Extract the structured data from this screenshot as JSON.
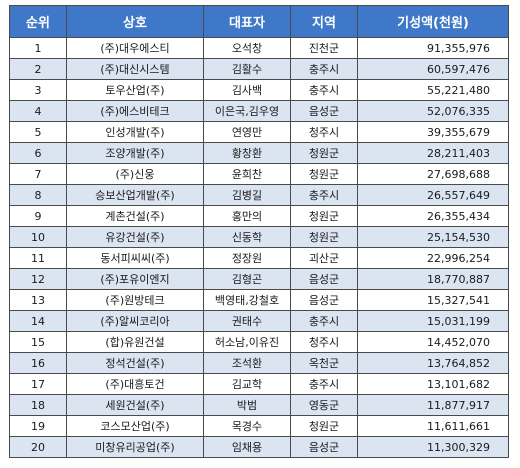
{
  "table": {
    "headers": {
      "rank": "순위",
      "company": "상호",
      "ceo": "대표자",
      "region": "지역",
      "amount": "기성액(천원)"
    },
    "colors": {
      "header_bg": "#3f78c8",
      "header_text": "#ffffff",
      "alt_row_bg": "#dbe5f1",
      "row_bg": "#ffffff"
    },
    "rows": [
      {
        "rank": "1",
        "company": "(주)대우에스티",
        "ceo": "오석창",
        "region": "진천군",
        "amount": "91,355,976"
      },
      {
        "rank": "2",
        "company": "(주)대신시스템",
        "ceo": "김활수",
        "region": "충주시",
        "amount": "60,597,476"
      },
      {
        "rank": "3",
        "company": "토우산업(주)",
        "ceo": "김사백",
        "region": "충주시",
        "amount": "55,221,480"
      },
      {
        "rank": "4",
        "company": "(주)에스비테크",
        "ceo": "이은국,김우영",
        "region": "음성군",
        "amount": "52,076,335"
      },
      {
        "rank": "5",
        "company": "인성개발(주)",
        "ceo": "연영만",
        "region": "청주시",
        "amount": "39,355,679"
      },
      {
        "rank": "6",
        "company": "조양개발(주)",
        "ceo": "황창환",
        "region": "청원군",
        "amount": "28,211,403"
      },
      {
        "rank": "7",
        "company": "(주)신웅",
        "ceo": "윤희찬",
        "region": "청원군",
        "amount": "27,698,688"
      },
      {
        "rank": "8",
        "company": "승보산업개발(주)",
        "ceo": "김병길",
        "region": "충주시",
        "amount": "26,557,649"
      },
      {
        "rank": "9",
        "company": "계촌건설(주)",
        "ceo": "홍만의",
        "region": "청원군",
        "amount": "26,355,434"
      },
      {
        "rank": "10",
        "company": "유강건설(주)",
        "ceo": "신동학",
        "region": "청원군",
        "amount": "25,154,530"
      },
      {
        "rank": "11",
        "company": "동서피씨씨(주)",
        "ceo": "정장원",
        "region": "괴산군",
        "amount": "22,996,254"
      },
      {
        "rank": "12",
        "company": "(주)포유이엔지",
        "ceo": "김형곤",
        "region": "음성군",
        "amount": "18,770,887"
      },
      {
        "rank": "13",
        "company": "(주)원방테크",
        "ceo": "백영태,강철호",
        "region": "음성군",
        "amount": "15,327,541"
      },
      {
        "rank": "14",
        "company": "(주)알씨코리아",
        "ceo": "권태수",
        "region": "충주시",
        "amount": "15,031,199"
      },
      {
        "rank": "15",
        "company": "(합)유원건설",
        "ceo": "허소남,이유진",
        "region": "청주시",
        "amount": "14,452,070"
      },
      {
        "rank": "16",
        "company": "정석건설(주)",
        "ceo": "조석환",
        "region": "옥천군",
        "amount": "13,764,852"
      },
      {
        "rank": "17",
        "company": "(주)대흥토건",
        "ceo": "김교학",
        "region": "충주시",
        "amount": "13,101,682"
      },
      {
        "rank": "18",
        "company": "세원건설(주)",
        "ceo": "박범",
        "region": "영동군",
        "amount": "11,877,917"
      },
      {
        "rank": "19",
        "company": "코스모산업(주)",
        "ceo": "목경수",
        "region": "청원군",
        "amount": "11,611,661"
      },
      {
        "rank": "20",
        "company": "미창유리공업(주)",
        "ceo": "임채용",
        "region": "음성군",
        "amount": "11,300,329"
      }
    ]
  }
}
